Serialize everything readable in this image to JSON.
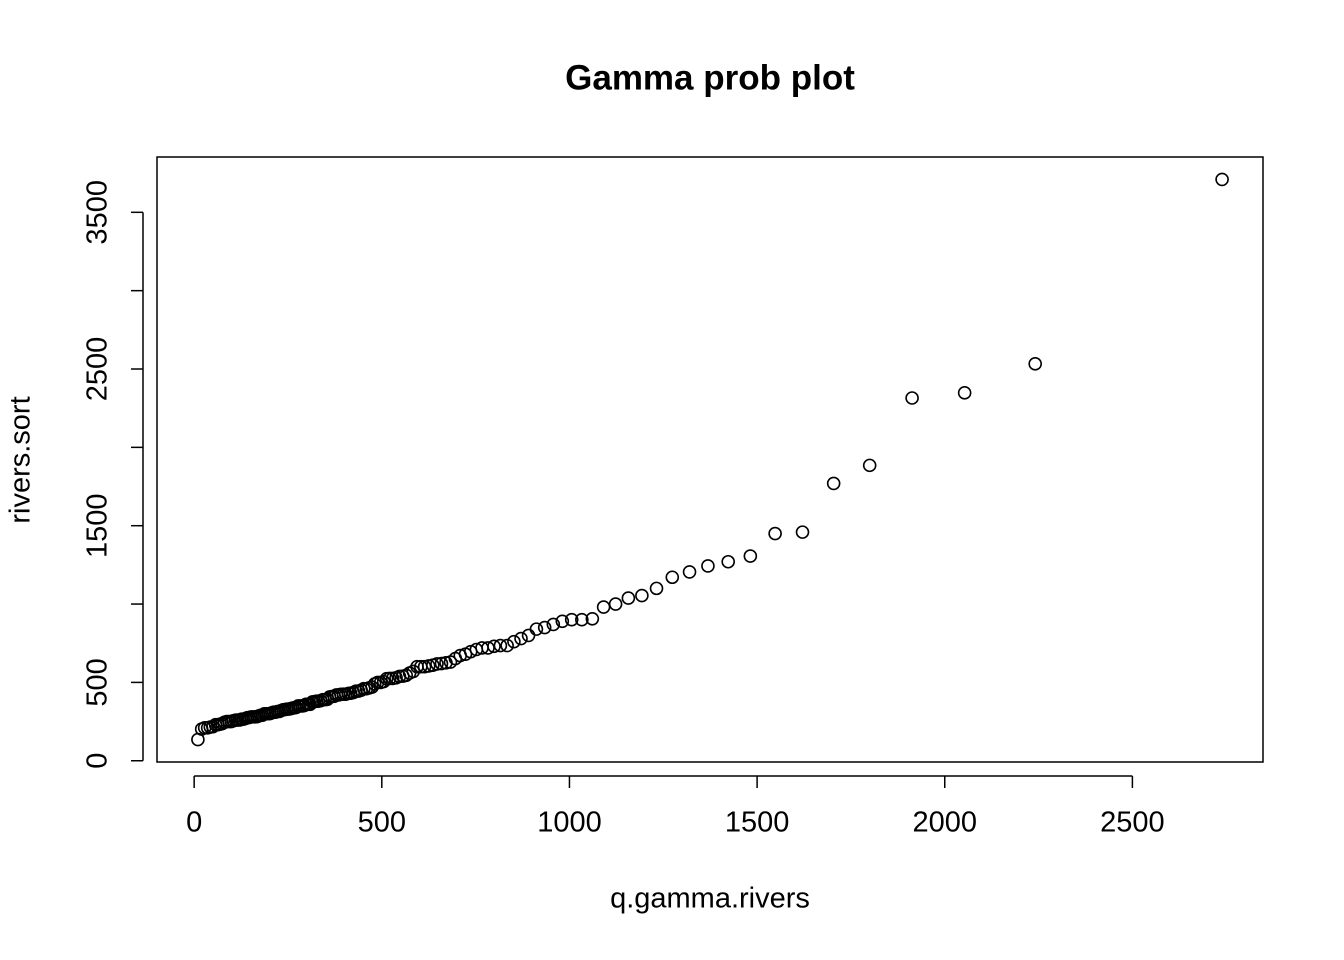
{
  "chart_data": {
    "type": "scatter",
    "title": "Gamma prob plot",
    "x_label": "q.gamma.rivers",
    "y_label": "rivers.sort",
    "color": "#000000",
    "x": [
      10,
      20,
      28,
      36,
      43,
      50,
      57,
      63,
      69,
      75,
      81,
      87,
      93,
      99,
      104,
      110,
      115,
      121,
      126,
      131,
      137,
      142,
      147,
      152,
      157,
      162,
      167,
      172,
      177,
      182,
      187,
      192,
      197,
      202,
      207,
      212,
      217,
      222,
      227,
      232,
      237,
      242,
      247,
      252,
      257,
      262,
      267,
      272,
      277,
      282,
      288,
      293,
      298,
      304,
      309,
      315,
      320,
      326,
      331,
      337,
      343,
      349,
      355,
      361,
      367,
      373,
      379,
      385,
      391,
      398,
      404,
      411,
      417,
      424,
      431,
      438,
      445,
      452,
      459,
      466,
      474,
      481,
      489,
      497,
      505,
      513,
      521,
      529,
      538,
      547,
      556,
      565,
      574,
      584,
      594,
      604,
      614,
      625,
      636,
      647,
      659,
      671,
      683,
      696,
      709,
      723,
      737,
      752,
      767,
      783,
      799,
      816,
      834,
      852,
      871,
      891,
      912,
      934,
      957,
      981,
      1006,
      1033,
      1061,
      1091,
      1123,
      1157,
      1193,
      1232,
      1274,
      1320,
      1369,
      1423,
      1482,
      1548,
      1621,
      1704,
      1800,
      1913,
      2053,
      2241,
      2739
    ],
    "values": [
      135,
      202,
      210,
      210,
      215,
      217,
      230,
      230,
      233,
      237,
      246,
      250,
      250,
      250,
      255,
      259,
      260,
      260,
      265,
      265,
      270,
      275,
      276,
      280,
      280,
      280,
      281,
      286,
      290,
      291,
      300,
      300,
      300,
      301,
      306,
      310,
      310,
      314,
      315,
      320,
      325,
      327,
      329,
      330,
      332,
      336,
      338,
      340,
      350,
      350,
      350,
      352,
      360,
      360,
      360,
      375,
      377,
      380,
      380,
      383,
      390,
      390,
      392,
      407,
      410,
      411,
      420,
      420,
      424,
      425,
      425,
      430,
      431,
      435,
      444,
      445,
      450,
      460,
      460,
      465,
      470,
      490,
      500,
      500,
      505,
      524,
      525,
      525,
      529,
      538,
      540,
      545,
      560,
      570,
      600,
      600,
      600,
      605,
      610,
      618,
      620,
      625,
      630,
      652,
      671,
      680,
      696,
      710,
      720,
      720,
      730,
      735,
      735,
      760,
      780,
      800,
      840,
      850,
      870,
      890,
      900,
      900,
      906,
      981,
      1000,
      1038,
      1054,
      1100,
      1171,
      1205,
      1243,
      1270,
      1306,
      1450,
      1459,
      1770,
      1885,
      2315,
      2348,
      2533,
      3710
    ],
    "xlim": [
      -99,
      2848
    ],
    "ylim": [
      -8,
      3853
    ],
    "xticks": [
      0,
      500,
      1000,
      1500,
      2000,
      2500
    ],
    "yticks": [
      0,
      500,
      {
        "value": 1000,
        "label": null
      },
      1500,
      {
        "value": 2000,
        "label": null
      },
      2500,
      {
        "value": 3000,
        "label": null
      },
      3500
    ]
  }
}
